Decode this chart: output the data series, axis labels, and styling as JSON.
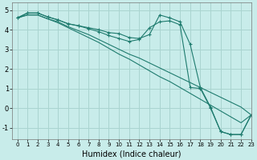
{
  "xlabel": "Humidex (Indice chaleur)",
  "xlim": [
    -0.5,
    23
  ],
  "ylim": [
    -1.6,
    5.4
  ],
  "yticks": [
    -1,
    0,
    1,
    2,
    3,
    4,
    5
  ],
  "xticks": [
    0,
    1,
    2,
    3,
    4,
    5,
    6,
    7,
    8,
    9,
    10,
    11,
    12,
    13,
    14,
    15,
    16,
    17,
    18,
    19,
    20,
    21,
    22,
    23
  ],
  "background_color": "#c8ecea",
  "grid_color": "#aad4d0",
  "line_color": "#1e7b6e",
  "lines": [
    {
      "x": [
        0,
        1,
        2,
        3,
        4,
        5,
        6,
        7,
        8,
        9,
        10,
        11,
        12,
        13,
        14,
        15,
        16,
        17,
        18,
        19,
        20,
        21,
        22,
        23
      ],
      "y": [
        4.6,
        4.85,
        4.85,
        4.65,
        4.5,
        4.3,
        4.2,
        4.1,
        4.0,
        3.85,
        3.8,
        3.6,
        3.55,
        3.75,
        4.75,
        4.6,
        4.4,
        3.25,
        1.05,
        0.05,
        -1.2,
        -1.35,
        -1.35,
        -0.35
      ],
      "marker": true
    },
    {
      "x": [
        0,
        1,
        2,
        3,
        4,
        5,
        6,
        7,
        8,
        9,
        10,
        11,
        12,
        13,
        14,
        15,
        16,
        17,
        18,
        19,
        20,
        21,
        22,
        23
      ],
      "y": [
        4.6,
        4.85,
        4.85,
        4.65,
        4.5,
        4.3,
        4.2,
        4.05,
        3.9,
        3.7,
        3.55,
        3.4,
        3.5,
        4.1,
        4.4,
        4.45,
        4.25,
        1.05,
        1.0,
        0.0,
        -1.2,
        -1.35,
        -1.35,
        -0.35
      ],
      "marker": true
    },
    {
      "x": [
        0,
        1,
        2,
        3,
        4,
        5,
        6,
        7,
        8,
        9,
        10,
        11,
        12,
        13,
        14,
        15,
        16,
        17,
        18,
        19,
        20,
        21,
        22,
        23
      ],
      "y": [
        4.6,
        4.75,
        4.75,
        4.55,
        4.4,
        4.15,
        3.95,
        3.75,
        3.5,
        3.25,
        3.0,
        2.75,
        2.55,
        2.3,
        2.05,
        1.8,
        1.55,
        1.3,
        1.05,
        0.8,
        0.55,
        0.3,
        0.05,
        -0.35
      ],
      "marker": false
    },
    {
      "x": [
        0,
        1,
        2,
        3,
        4,
        5,
        6,
        7,
        8,
        9,
        10,
        11,
        12,
        13,
        14,
        15,
        16,
        17,
        18,
        19,
        20,
        21,
        22,
        23
      ],
      "y": [
        4.6,
        4.75,
        4.75,
        4.55,
        4.35,
        4.1,
        3.85,
        3.6,
        3.35,
        3.05,
        2.75,
        2.5,
        2.2,
        1.9,
        1.6,
        1.35,
        1.05,
        0.75,
        0.45,
        0.15,
        -0.15,
        -0.45,
        -0.75,
        -0.35
      ],
      "marker": false
    }
  ]
}
